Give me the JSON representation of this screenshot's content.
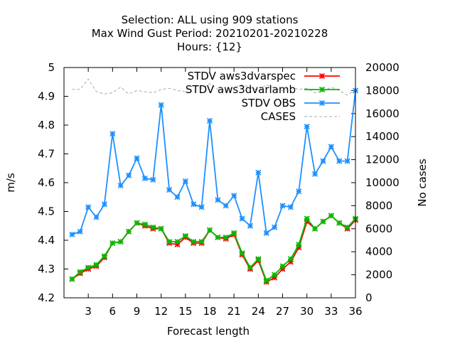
{
  "chart_data": {
    "type": "line",
    "title_lines": [
      "Selection: ALL using   909 stations",
      "Max Wind Gust   Period: 20210201-20210228",
      "Hours: {12}"
    ],
    "xlabel": "Forecast length",
    "ylabel": "m/s",
    "y2label": "No cases",
    "xlim": [
      0,
      36
    ],
    "ylim": [
      4.2,
      5.0
    ],
    "y2lim": [
      0,
      20000
    ],
    "x_ticks": [
      3,
      6,
      9,
      12,
      15,
      18,
      21,
      24,
      27,
      30,
      33,
      36
    ],
    "y_ticks": [
      4.2,
      4.3,
      4.4,
      4.5,
      4.6,
      4.7,
      4.8,
      4.9,
      5
    ],
    "y2_ticks": [
      0,
      2000,
      4000,
      6000,
      8000,
      10000,
      12000,
      14000,
      16000,
      18000,
      20000
    ],
    "grid": false,
    "legend_position": "top-right",
    "x": [
      1,
      2,
      3,
      4,
      5,
      6,
      7,
      8,
      9,
      10,
      11,
      12,
      13,
      14,
      15,
      16,
      17,
      18,
      19,
      20,
      21,
      22,
      23,
      24,
      25,
      26,
      27,
      28,
      29,
      30,
      31,
      32,
      33,
      34,
      35,
      36
    ],
    "series": [
      {
        "name": "STDV aws3dvarspec",
        "color": "#ff0000",
        "axis": "left",
        "values": [
          4.265,
          4.285,
          4.3,
          4.31,
          4.34,
          4.39,
          4.395,
          4.43,
          4.46,
          4.45,
          4.44,
          4.44,
          4.39,
          4.385,
          4.41,
          4.39,
          4.39,
          4.435,
          4.41,
          4.405,
          4.42,
          4.35,
          4.3,
          4.33,
          4.255,
          4.27,
          4.3,
          4.325,
          4.375,
          4.465,
          4.44,
          4.465,
          4.485,
          4.46,
          4.44,
          4.47
        ]
      },
      {
        "name": "STDV aws3dvarlamb",
        "color": "#00bb00",
        "axis": "left",
        "values": [
          4.265,
          4.29,
          4.305,
          4.315,
          4.345,
          4.39,
          4.395,
          4.43,
          4.46,
          4.455,
          4.445,
          4.44,
          4.395,
          4.395,
          4.415,
          4.395,
          4.395,
          4.435,
          4.41,
          4.41,
          4.425,
          4.355,
          4.305,
          4.335,
          4.26,
          4.28,
          4.31,
          4.335,
          4.385,
          4.475,
          4.44,
          4.465,
          4.485,
          4.46,
          4.445,
          4.475
        ]
      },
      {
        "name": "STDV OBS",
        "color": "#1e90ff",
        "axis": "left",
        "values": [
          4.42,
          4.43,
          4.515,
          4.48,
          4.525,
          4.77,
          4.59,
          4.625,
          4.685,
          4.615,
          4.61,
          4.87,
          4.575,
          4.55,
          4.605,
          4.525,
          4.515,
          4.815,
          4.54,
          4.52,
          4.555,
          4.475,
          4.45,
          4.635,
          4.425,
          4.445,
          4.52,
          4.515,
          4.57,
          4.795,
          4.63,
          4.675,
          4.725,
          4.675,
          4.675,
          4.92
        ]
      },
      {
        "name": "CASES",
        "color": "#aaaaaa",
        "axis": "right",
        "dashed": true,
        "values": [
          18100,
          18100,
          19000,
          17900,
          17700,
          17800,
          18300,
          17700,
          18000,
          17900,
          17800,
          18100,
          18200,
          18000,
          17900,
          18500,
          18200,
          18600,
          18100,
          18000,
          18300,
          18500,
          18300,
          18000,
          18500,
          18200,
          18000,
          18300,
          18100,
          18200,
          17800,
          17900,
          18300,
          18000,
          17600,
          18100
        ]
      }
    ]
  }
}
